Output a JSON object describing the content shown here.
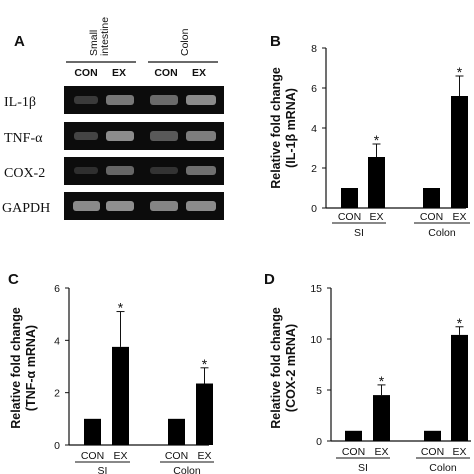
{
  "panel_a": {
    "letter": "A",
    "tissues": [
      "Small intestine",
      "Colon"
    ],
    "tissue_lines": [
      [
        "Small",
        "intestine"
      ],
      [
        "Colon"
      ]
    ],
    "lanes": [
      "CON",
      "EX",
      "CON",
      "EX"
    ],
    "genes": [
      "IL-1β",
      "TNF-α",
      "COX-2",
      "GAPDH"
    ]
  },
  "chart_data": [
    {
      "panel": "B",
      "type": "bar",
      "ylabel": [
        "Relative fold change",
        "(IL-1β mRNA)"
      ],
      "ylim": [
        0,
        8
      ],
      "yticks": [
        0,
        2,
        4,
        6,
        8
      ],
      "groups": [
        "SI",
        "Colon"
      ],
      "categories": [
        "CON",
        "EX",
        "CON",
        "EX"
      ],
      "values": [
        1.0,
        2.55,
        1.0,
        5.6
      ],
      "errors": [
        0,
        0.65,
        0,
        1.0
      ],
      "significant": [
        false,
        true,
        false,
        true
      ],
      "star_label": "*",
      "bar_color": "#000000"
    },
    {
      "panel": "C",
      "type": "bar",
      "ylabel": [
        "Relative fold change",
        "(TNF-α mRNA)"
      ],
      "ylim": [
        0,
        6
      ],
      "yticks": [
        0,
        2,
        4,
        6
      ],
      "groups": [
        "SI",
        "Colon"
      ],
      "categories": [
        "CON",
        "EX",
        "CON",
        "EX"
      ],
      "values": [
        1.0,
        3.75,
        1.0,
        2.35
      ],
      "errors": [
        0,
        1.35,
        0,
        0.6
      ],
      "significant": [
        false,
        true,
        false,
        true
      ],
      "star_label": "*",
      "bar_color": "#000000"
    },
    {
      "panel": "D",
      "type": "bar",
      "ylabel": [
        "Relative fold change",
        "(COX-2 mRNA)"
      ],
      "ylim": [
        0,
        15
      ],
      "yticks": [
        0,
        5,
        10,
        15
      ],
      "groups": [
        "SI",
        "Colon"
      ],
      "categories": [
        "CON",
        "EX",
        "CON",
        "EX"
      ],
      "values": [
        1.0,
        4.5,
        1.0,
        10.4
      ],
      "errors": [
        0,
        1.0,
        0,
        0.8
      ],
      "significant": [
        false,
        true,
        false,
        true
      ],
      "star_label": "*",
      "bar_color": "#000000"
    }
  ]
}
